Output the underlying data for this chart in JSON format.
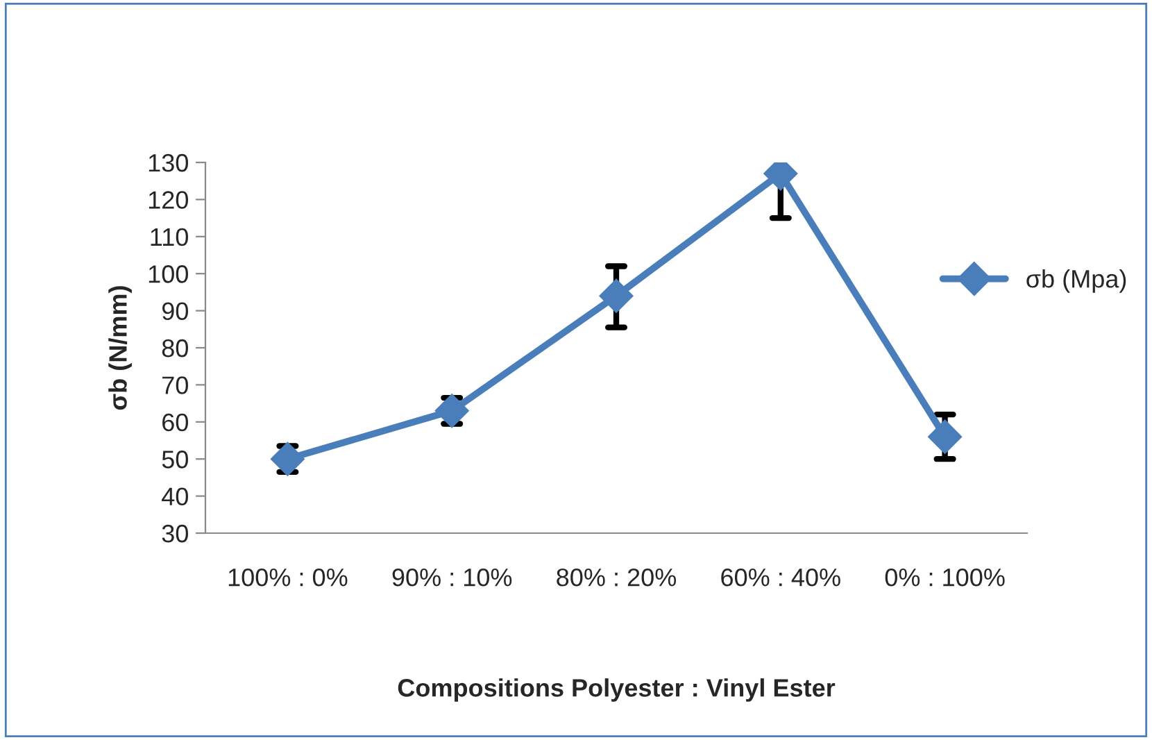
{
  "chart_data": {
    "type": "line",
    "xlabel": "Compositions Polyester : Vinyl Ester",
    "ylabel": "σb (N/mm)",
    "categories": [
      "100% : 0%",
      "90% : 10%",
      "80% : 20%",
      "60% : 40%",
      "0% : 100%"
    ],
    "series": [
      {
        "name": "σb (Mpa)",
        "color": "#4a7ebb",
        "values": [
          50,
          63,
          94,
          127,
          56
        ],
        "errors": [
          [
            46.5,
            53.5
          ],
          [
            59.5,
            66.5
          ],
          [
            85.5,
            102
          ],
          [
            115,
            127
          ],
          [
            50,
            62
          ]
        ]
      }
    ],
    "ylim": [
      30,
      130
    ],
    "yticks": [
      30,
      40,
      50,
      60,
      70,
      80,
      90,
      100,
      110,
      120,
      130
    ],
    "grid": false,
    "legend": "right",
    "marker": "diamond",
    "line_style": "solid"
  }
}
